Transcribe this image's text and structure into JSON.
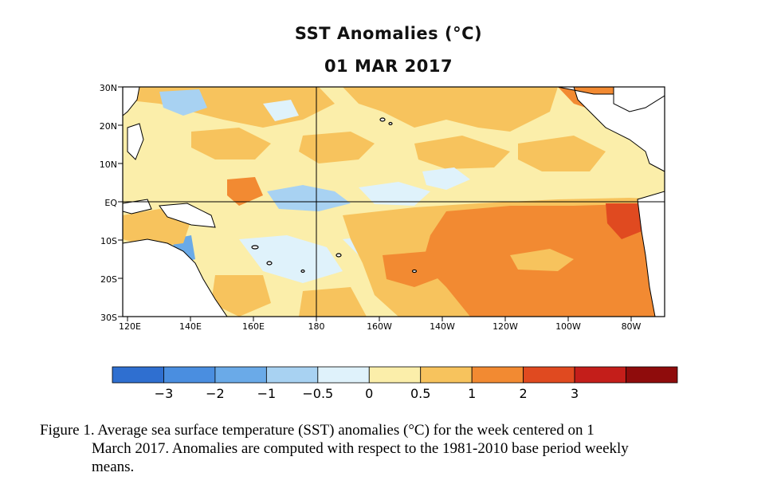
{
  "title": "SST Anomalies (°C)",
  "date": "01 MAR 2017",
  "map": {
    "lat_labels": [
      "30N",
      "20N",
      "10N",
      "EQ",
      "10S",
      "20S",
      "30S"
    ],
    "lon_labels": [
      "120E",
      "140E",
      "160E",
      "180",
      "160W",
      "140W",
      "120W",
      "100W",
      "80W"
    ],
    "lon_range": [
      120,
      292
    ],
    "lat_range": [
      -30,
      30
    ],
    "reference_lines": [
      "equator",
      "180"
    ]
  },
  "colorbar": {
    "labels": [
      "-3",
      "-2",
      "-1",
      "-0.5",
      "0",
      "0.5",
      "1",
      "2",
      "3"
    ],
    "colors": [
      "#2f6fd0",
      "#4a8ee0",
      "#6aaae8",
      "#a8d2f2",
      "#dff2fb",
      "#fbeeaa",
      "#f7c35d",
      "#f28a32",
      "#e04a20",
      "#c41e1a",
      "#8f0c0c"
    ]
  },
  "caption": {
    "line1": "Figure  1. Average sea surface temperature (SST) anomalies  (°C) for the week centered on 1",
    "line2": "March 2017.  Anomalies  are computed with respect to the 1981-2010  base period weekly",
    "line3": "means."
  }
}
